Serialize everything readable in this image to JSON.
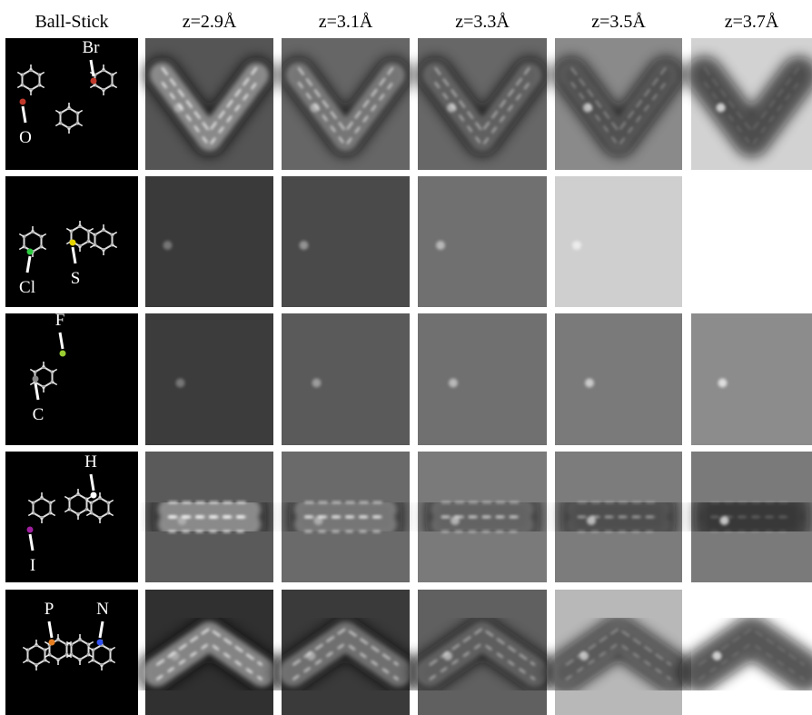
{
  "header": {
    "columns": [
      "Ball-Stick",
      "z=2.9Å",
      "z=3.1Å",
      "z=3.3Å",
      "z=3.5Å",
      "z=3.7Å"
    ]
  },
  "rows": [
    {
      "labels": [
        "Br",
        "O"
      ]
    },
    {
      "labels": [
        "Cl",
        "S"
      ]
    },
    {
      "labels": [
        "F",
        "C"
      ]
    },
    {
      "labels": [
        "H",
        "I"
      ]
    },
    {
      "labels": [
        "P",
        "N"
      ]
    }
  ]
}
